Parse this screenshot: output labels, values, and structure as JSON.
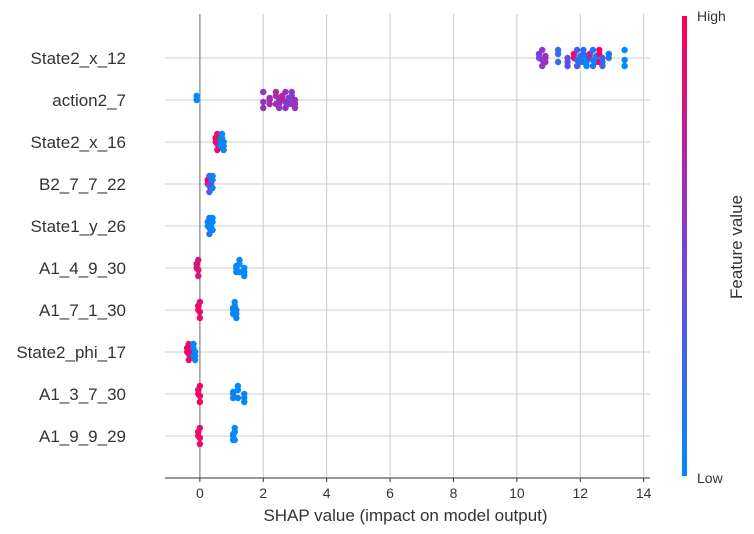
{
  "chart_data": {
    "type": "scatter",
    "subtype": "shap-beeswarm",
    "xlabel": "SHAP value (impact on model output)",
    "xlim": [
      -1.1,
      14.2
    ],
    "xticks": [
      0,
      2,
      4,
      6,
      8,
      10,
      12,
      14
    ],
    "grid": "horizontal",
    "colorbar": {
      "title": "Feature value",
      "high_label": "High",
      "low_label": "Low",
      "low_color": "#008afb",
      "high_color": "#ff0052"
    },
    "features": [
      {
        "name": "State2_x_12",
        "points": [
          {
            "x": 10.7,
            "v": 0.5
          },
          {
            "x": 10.8,
            "v": 0.55
          },
          {
            "x": 10.9,
            "v": 0.6
          },
          {
            "x": 11.3,
            "v": 0.2
          },
          {
            "x": 11.6,
            "v": 0.4
          },
          {
            "x": 11.8,
            "v": 0.9
          },
          {
            "x": 11.9,
            "v": 0.3
          },
          {
            "x": 12.0,
            "v": 0.1
          },
          {
            "x": 12.1,
            "v": 0.2
          },
          {
            "x": 12.2,
            "v": 0.0
          },
          {
            "x": 12.3,
            "v": 0.7
          },
          {
            "x": 12.4,
            "v": 0.1
          },
          {
            "x": 12.5,
            "v": 0.05
          },
          {
            "x": 12.6,
            "v": 0.95
          },
          {
            "x": 12.7,
            "v": 0.3
          },
          {
            "x": 12.9,
            "v": 0.1
          },
          {
            "x": 13.4,
            "v": 0.0
          }
        ]
      },
      {
        "name": "action2_7",
        "points": [
          {
            "x": -0.1,
            "v": 0.0
          },
          {
            "x": 2.0,
            "v": 0.6
          },
          {
            "x": 2.2,
            "v": 0.65
          },
          {
            "x": 2.4,
            "v": 0.7
          },
          {
            "x": 2.5,
            "v": 0.55
          },
          {
            "x": 2.6,
            "v": 0.75
          },
          {
            "x": 2.7,
            "v": 0.6
          },
          {
            "x": 2.8,
            "v": 0.5
          },
          {
            "x": 2.9,
            "v": 0.55
          },
          {
            "x": 3.0,
            "v": 0.6
          }
        ]
      },
      {
        "name": "State2_x_16",
        "points": [
          {
            "x": 0.5,
            "v": 0.95
          },
          {
            "x": 0.55,
            "v": 0.9
          },
          {
            "x": 0.65,
            "v": 0.1
          },
          {
            "x": 0.7,
            "v": 0.0
          },
          {
            "x": 0.75,
            "v": 0.05
          }
        ]
      },
      {
        "name": "B2_7_7_22",
        "points": [
          {
            "x": 0.25,
            "v": 0.95
          },
          {
            "x": 0.3,
            "v": 0.2
          },
          {
            "x": 0.35,
            "v": 0.5
          },
          {
            "x": 0.4,
            "v": 0.05
          }
        ]
      },
      {
        "name": "State1_y_26",
        "points": [
          {
            "x": 0.25,
            "v": 0.0
          },
          {
            "x": 0.3,
            "v": 0.1
          },
          {
            "x": 0.35,
            "v": 0.05
          },
          {
            "x": 0.4,
            "v": 0.0
          }
        ]
      },
      {
        "name": "A1_4_9_30",
        "points": [
          {
            "x": -0.1,
            "v": 0.9
          },
          {
            "x": -0.05,
            "v": 0.85
          },
          {
            "x": 1.15,
            "v": 0.05
          },
          {
            "x": 1.25,
            "v": 0.0
          },
          {
            "x": 1.4,
            "v": 0.0
          }
        ]
      },
      {
        "name": "A1_7_1_30",
        "points": [
          {
            "x": -0.05,
            "v": 0.95
          },
          {
            "x": 0.0,
            "v": 0.9
          },
          {
            "x": 1.05,
            "v": 0.05
          },
          {
            "x": 1.1,
            "v": 0.0
          },
          {
            "x": 1.15,
            "v": 0.05
          }
        ]
      },
      {
        "name": "State2_phi_17",
        "points": [
          {
            "x": -0.4,
            "v": 0.95
          },
          {
            "x": -0.35,
            "v": 0.9
          },
          {
            "x": -0.3,
            "v": 0.92
          },
          {
            "x": -0.2,
            "v": 0.0
          },
          {
            "x": -0.15,
            "v": 0.05
          }
        ]
      },
      {
        "name": "A1_3_7_30",
        "points": [
          {
            "x": -0.05,
            "v": 0.9
          },
          {
            "x": 0.0,
            "v": 0.95
          },
          {
            "x": 1.05,
            "v": 0.05
          },
          {
            "x": 1.2,
            "v": 0.0
          },
          {
            "x": 1.4,
            "v": 0.05
          }
        ]
      },
      {
        "name": "A1_9_9_29",
        "points": [
          {
            "x": -0.05,
            "v": 0.95
          },
          {
            "x": 0.0,
            "v": 0.9
          },
          {
            "x": 1.05,
            "v": 0.05
          },
          {
            "x": 1.1,
            "v": 0.0
          }
        ]
      }
    ]
  }
}
